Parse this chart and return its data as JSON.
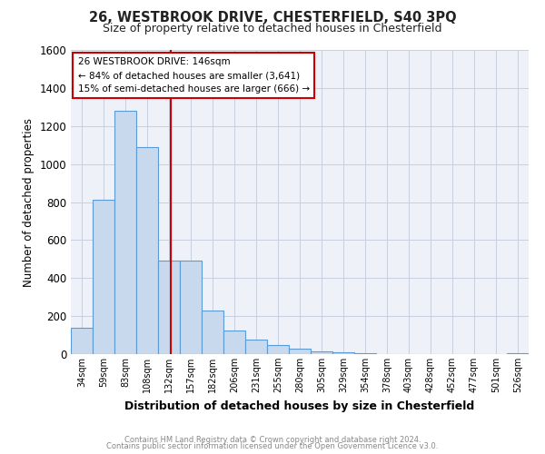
{
  "title_line1": "26, WESTBROOK DRIVE, CHESTERFIELD, S40 3PQ",
  "title_line2": "Size of property relative to detached houses in Chesterfield",
  "xlabel": "Distribution of detached houses by size in Chesterfield",
  "ylabel": "Number of detached properties",
  "bin_labels": [
    "34sqm",
    "59sqm",
    "83sqm",
    "108sqm",
    "132sqm",
    "157sqm",
    "182sqm",
    "206sqm",
    "231sqm",
    "255sqm",
    "280sqm",
    "305sqm",
    "329sqm",
    "354sqm",
    "378sqm",
    "403sqm",
    "428sqm",
    "452sqm",
    "477sqm",
    "501sqm",
    "526sqm"
  ],
  "bar_heights": [
    140,
    810,
    1280,
    1090,
    490,
    490,
    230,
    125,
    75,
    50,
    30,
    15,
    10,
    5,
    0,
    0,
    0,
    0,
    0,
    0,
    5
  ],
  "bar_color": "#c8d9ed",
  "bar_edge_color": "#5b9bd5",
  "ylim": [
    0,
    1600
  ],
  "yticks": [
    0,
    200,
    400,
    600,
    800,
    1000,
    1200,
    1400,
    1600
  ],
  "vline_x": 4.6,
  "vline_color": "#cc0000",
  "annotation_title": "26 WESTBROOK DRIVE: 146sqm",
  "annotation_line1": "← 84% of detached houses are smaller (3,641)",
  "annotation_line2": "15% of semi-detached houses are larger (666) →",
  "footer_line1": "Contains HM Land Registry data © Crown copyright and database right 2024.",
  "footer_line2": "Contains public sector information licensed under the Open Government Licence v3.0.",
  "bg_color": "#ffffff",
  "plot_bg_color": "#eef2f8",
  "grid_color": "#c8d0de"
}
